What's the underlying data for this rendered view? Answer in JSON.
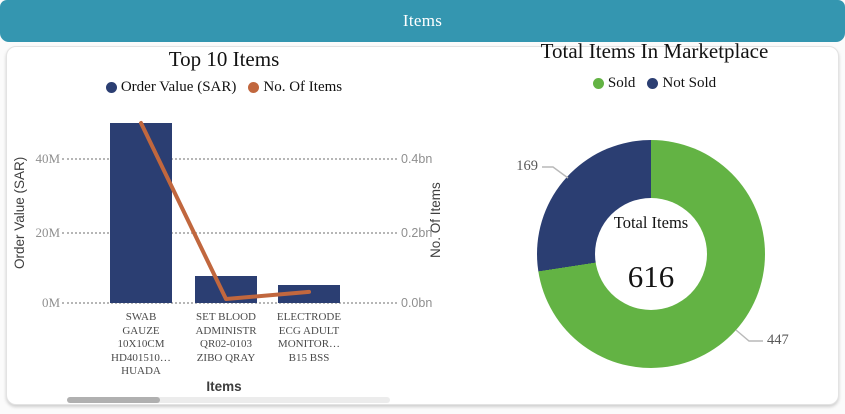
{
  "header": {
    "title": "Items"
  },
  "colors": {
    "header_teal": "#3496b0",
    "bar_navy": "#2b3e72",
    "line_orange": "#c1673e",
    "sold_green": "#63b344",
    "not_sold_navy": "#2b3e72",
    "gridline_gray": "#b6b6b6"
  },
  "chart_data": [
    {
      "type": "bar",
      "title": "Top 10 Items",
      "xlabel": "Items",
      "grid": "horizontal-dotted",
      "legend_position": "top",
      "categories": [
        [
          "SWAB",
          "GAUZE",
          "10X10CM",
          "HD401510…",
          "HUADA"
        ],
        [
          "SET BLOOD",
          "ADMINISTR",
          "QR02-0103",
          "ZIBO QRAY"
        ],
        [
          "ELECTRODE",
          "ECG ADULT",
          "MONITOR…",
          "B15 BSS"
        ]
      ],
      "series": [
        {
          "name": "Order Value (SAR)",
          "type": "bar",
          "axis": "left",
          "unit": "M",
          "values": [
            50,
            7.5,
            5
          ]
        },
        {
          "name": "No. Of Items",
          "type": "line",
          "axis": "right",
          "unit": "bn",
          "values": [
            0.5,
            0.011,
            0.031
          ]
        }
      ],
      "left_axis": {
        "title": "Order Value (SAR)",
        "ticks": [
          "0M",
          "20M",
          "40M"
        ],
        "range_M": [
          0,
          40
        ]
      },
      "right_axis": {
        "title": "No. Of Items",
        "ticks": [
          "0.0bn",
          "0.2bn",
          "0.4bn"
        ],
        "range_bn": [
          0,
          0.4
        ]
      }
    },
    {
      "type": "pie",
      "donut": true,
      "title": "Total Items In Marketplace",
      "legend_position": "top",
      "labels": [
        "Sold",
        "Not Sold"
      ],
      "values": [
        447,
        169
      ],
      "center_label": "Total Items",
      "total": 616
    }
  ]
}
